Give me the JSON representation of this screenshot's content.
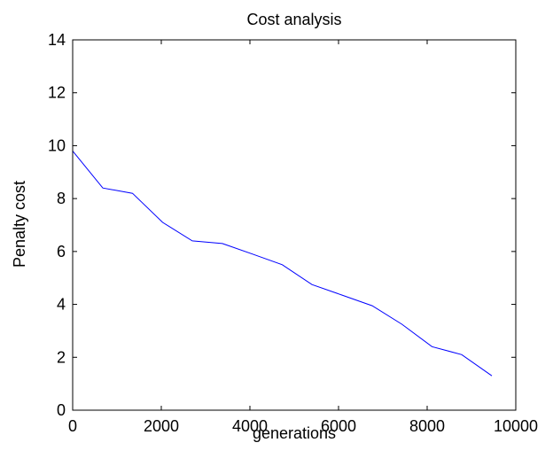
{
  "chart_data": {
    "type": "line",
    "title": "Cost analysis",
    "xlabel": "generations",
    "ylabel": "Penalty cost",
    "xlim": [
      0,
      10000
    ],
    "ylim": [
      0,
      14
    ],
    "x_ticks": [
      0,
      2000,
      4000,
      6000,
      8000,
      10000
    ],
    "y_ticks": [
      0,
      2,
      4,
      6,
      8,
      10,
      12,
      14
    ],
    "x_tick_labels": [
      "0",
      "2000",
      "4000",
      "6000",
      "8000",
      "10000"
    ],
    "y_tick_labels": [
      "0",
      "2",
      "4",
      "6",
      "8",
      "10",
      "12",
      "14"
    ],
    "grid": false,
    "series": [
      {
        "color": "#0000ff",
        "x": [
          0,
          680,
          1350,
          2030,
          2700,
          3380,
          4060,
          4730,
          5400,
          6080,
          6760,
          7430,
          8110,
          8780,
          9460
        ],
        "y": [
          9.8,
          8.4,
          8.2,
          7.1,
          6.4,
          6.3,
          5.9,
          5.5,
          4.75,
          4.35,
          3.95,
          3.25,
          2.4,
          2.1,
          1.3
        ]
      }
    ]
  }
}
